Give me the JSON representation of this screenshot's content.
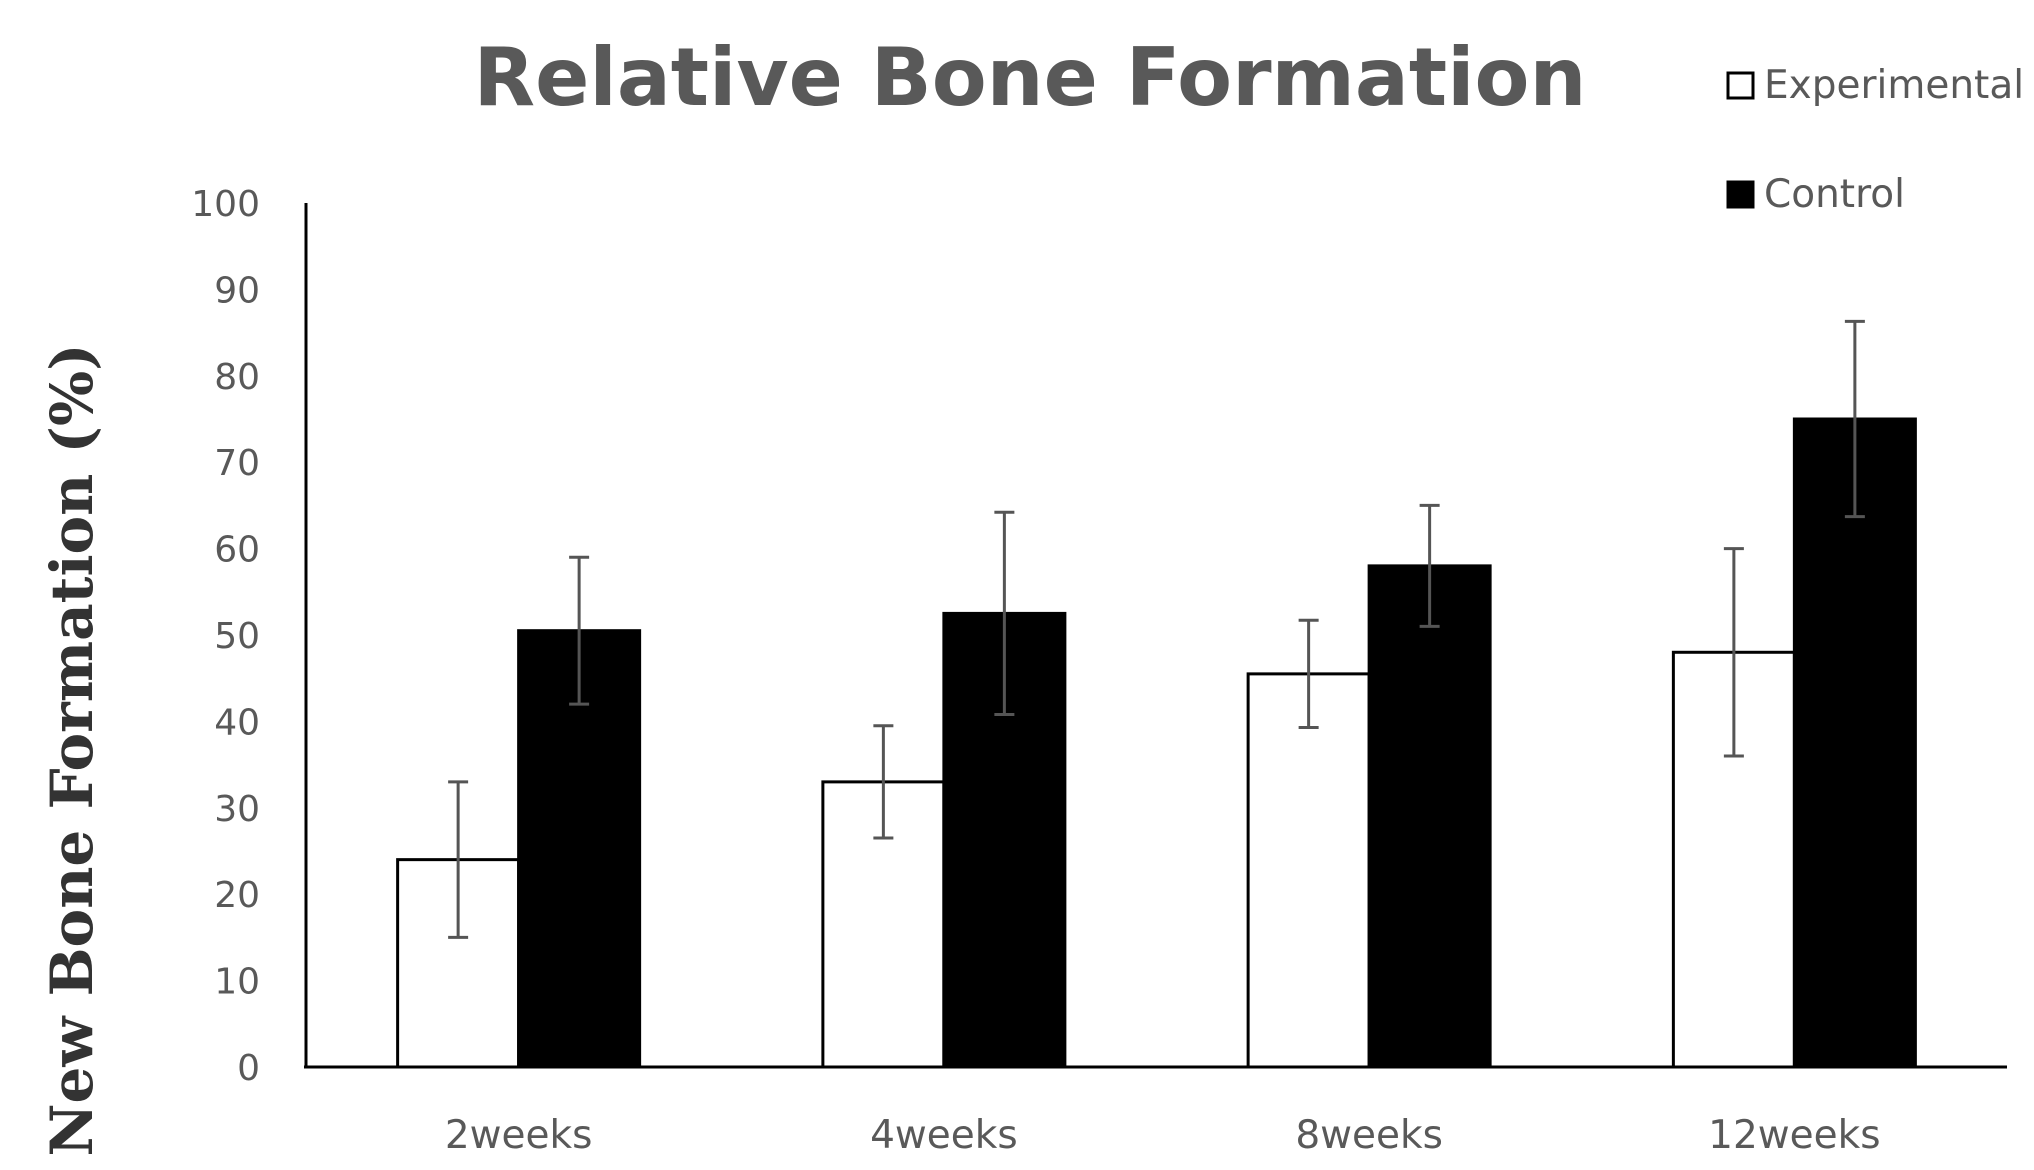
{
  "chart_data": {
    "type": "bar",
    "title": "Relative Bone Formation",
    "ylabel": "New Bone Formation (%)",
    "xlabel": "",
    "ylim": [
      0,
      100
    ],
    "yticks": [
      0,
      10,
      20,
      30,
      40,
      50,
      60,
      70,
      80,
      90,
      100
    ],
    "categories": [
      "2weeks",
      "4weeks",
      "8weeks",
      "12weeks"
    ],
    "series": [
      {
        "name": "Experimental",
        "color": "#ffffff",
        "values": [
          24,
          33,
          45.5,
          48
        ],
        "error": [
          9,
          6.5,
          6.2,
          12
        ]
      },
      {
        "name": "Control",
        "color": "#000000",
        "values": [
          50.5,
          52.5,
          58,
          75
        ],
        "error": [
          8.5,
          11.7,
          7,
          11.3
        ]
      }
    ],
    "legend_position": "top-right",
    "grid": false
  }
}
